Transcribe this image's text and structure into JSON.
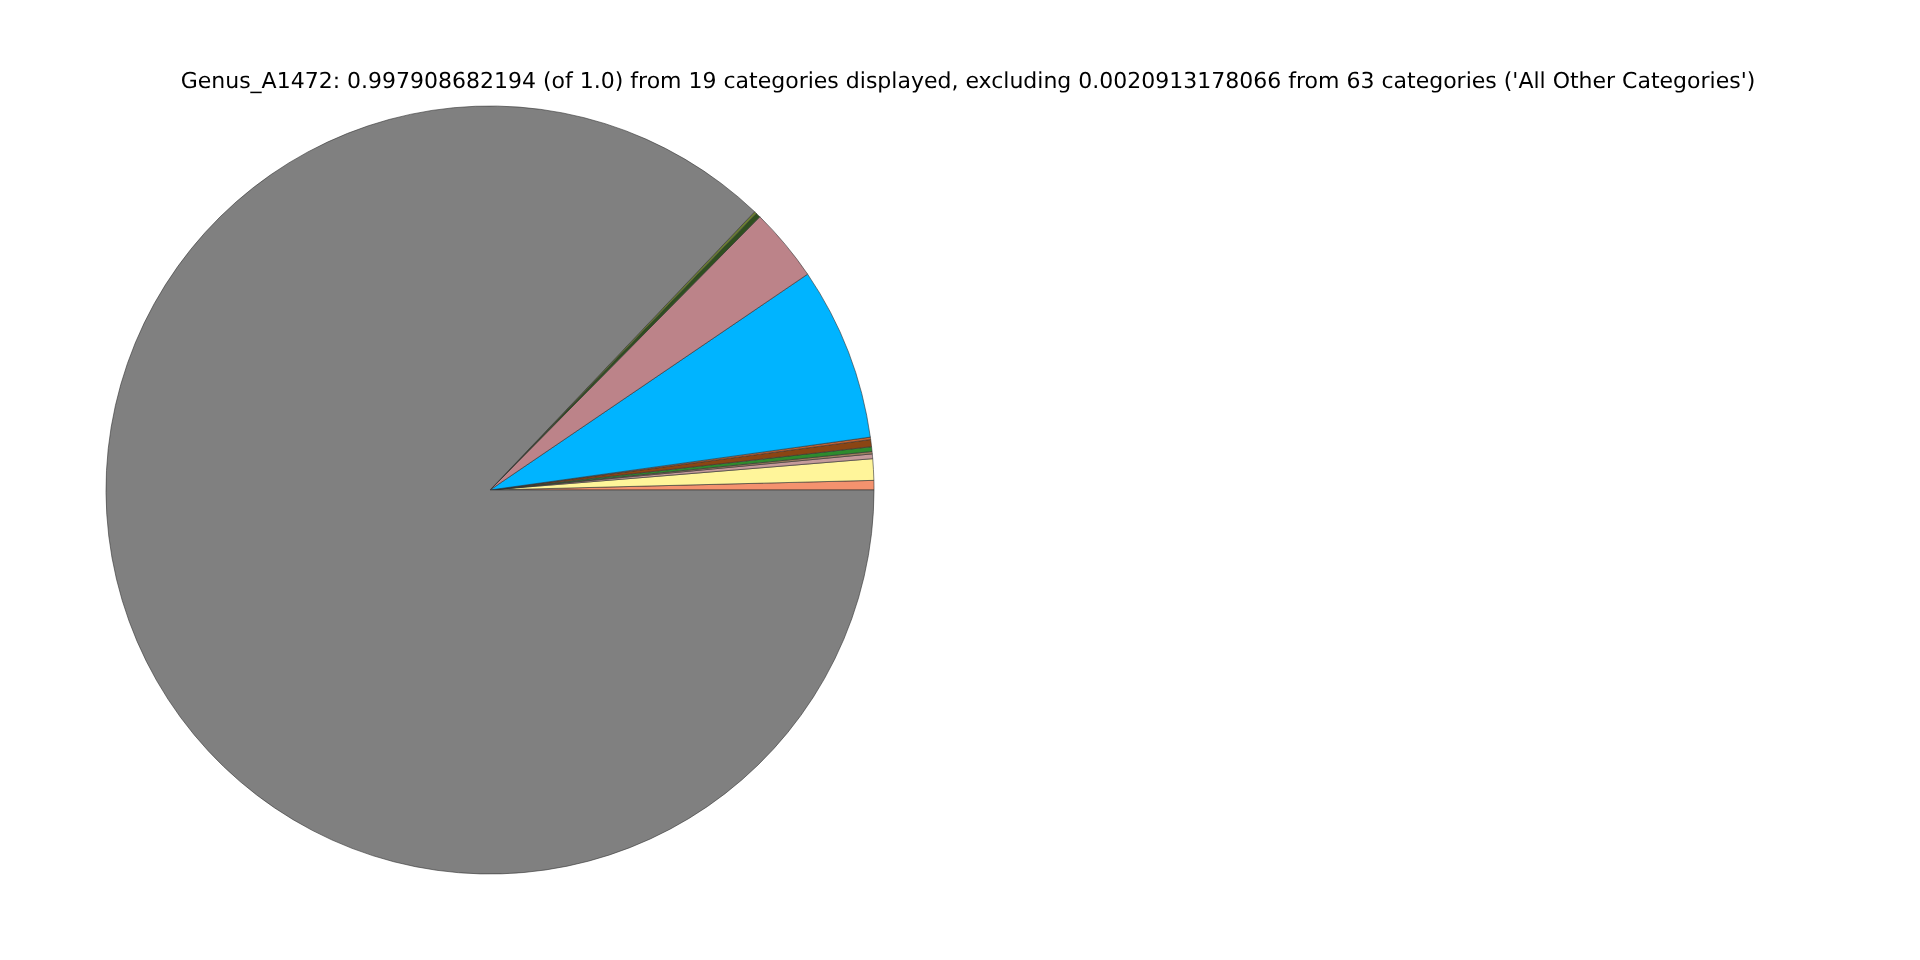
{
  "chart_data": {
    "type": "pie",
    "title": "Genus_A1472: 0.997908682194 (of 1.0) from 19 categories displayed, excluding 0.0020913178066 from 63 categories ('All Other Categories')",
    "categories": [
      null,
      null,
      null,
      null,
      null,
      null,
      null,
      null,
      null,
      null,
      null,
      null
    ],
    "values": [
      0.4,
      0.9,
      0.2,
      0.1,
      0.2,
      0.3,
      0.1,
      7.3,
      3.1,
      0.2,
      0.1,
      87.1
    ],
    "colors": [
      "#f4926e",
      "#fff59a",
      "#c49a9a",
      "#a08060",
      "#2e8b2e",
      "#8b4513",
      "#c86432",
      "#00b4ff",
      "#bc8389",
      "#2f4f1f",
      "#6b7f2f",
      "#808080"
    ]
  }
}
